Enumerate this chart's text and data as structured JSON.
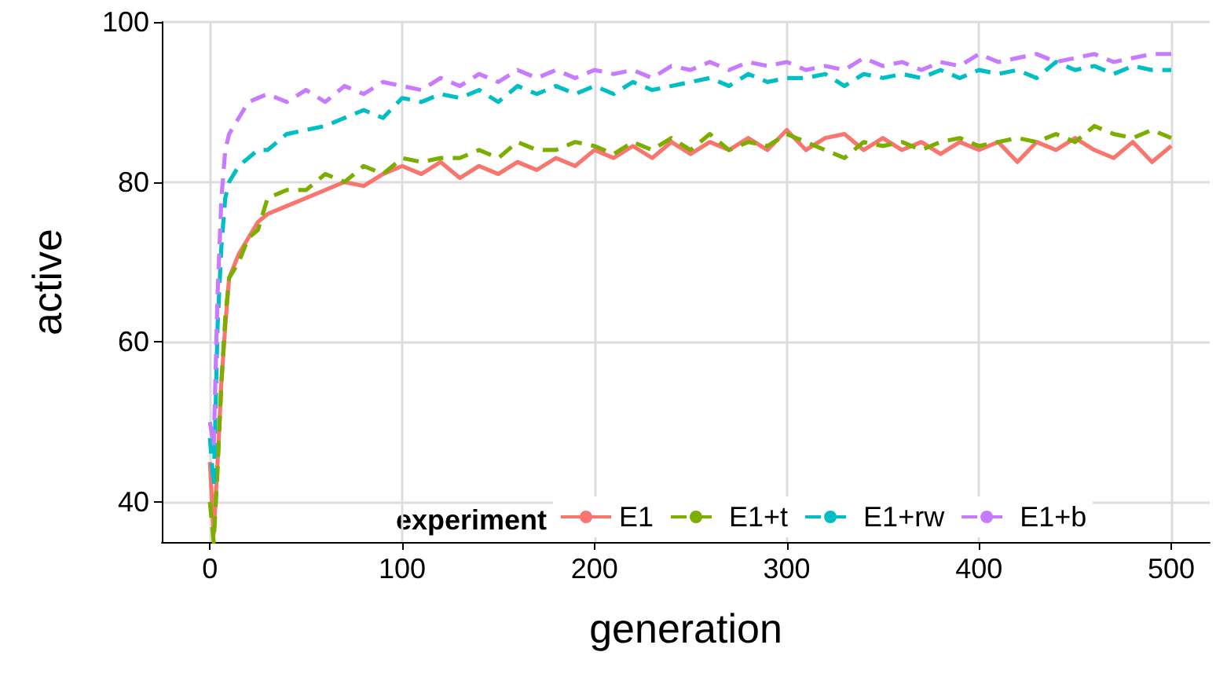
{
  "chart_data": {
    "type": "line",
    "xlabel": "generation",
    "ylabel": "active",
    "legend_title": "experiment",
    "x": [
      0,
      2,
      4,
      6,
      8,
      10,
      15,
      20,
      25,
      30,
      40,
      50,
      60,
      70,
      80,
      90,
      100,
      110,
      120,
      130,
      140,
      150,
      160,
      170,
      180,
      190,
      200,
      210,
      220,
      230,
      240,
      250,
      260,
      270,
      280,
      290,
      300,
      310,
      320,
      330,
      340,
      350,
      360,
      370,
      380,
      390,
      400,
      410,
      420,
      430,
      440,
      450,
      460,
      470,
      480,
      490,
      500
    ],
    "series": [
      {
        "name": "E1",
        "color": "#f8766d",
        "line_style": "solid",
        "values": [
          45,
          36,
          45,
          55,
          62,
          68,
          71,
          73,
          75,
          76,
          77,
          78,
          79,
          80,
          79.5,
          81,
          82,
          81,
          82.5,
          80.5,
          82,
          81,
          82.5,
          81.5,
          83,
          82,
          84,
          83,
          84.5,
          83,
          85,
          83.5,
          85,
          84,
          85.5,
          84,
          86.5,
          84,
          85.5,
          86,
          84,
          85.5,
          84,
          85,
          83.5,
          85,
          84,
          85,
          82.5,
          85,
          84,
          85.5,
          84,
          83,
          85,
          82.5,
          84.5
        ]
      },
      {
        "name": "E1+t",
        "color": "#7cae00",
        "line_style": "dashed",
        "values": [
          40,
          35,
          44,
          55,
          63,
          68,
          70,
          73,
          74,
          78,
          79,
          79,
          81,
          80,
          82,
          81,
          83,
          82.5,
          83,
          83,
          84,
          83,
          85,
          84,
          84,
          85,
          84.5,
          83.5,
          85,
          84,
          85.5,
          84,
          86,
          84,
          85,
          84.5,
          86,
          85,
          84,
          83,
          85,
          84.5,
          85,
          84,
          85,
          85.5,
          84.5,
          85,
          85.5,
          85,
          86,
          85,
          87,
          86,
          85.5,
          86.5,
          85.5
        ]
      },
      {
        "name": "E1+rw",
        "color": "#00bfc4",
        "line_style": "dashed",
        "values": [
          48,
          42,
          62,
          72,
          78,
          80,
          82,
          83,
          84,
          84,
          86,
          86.5,
          87,
          88,
          89,
          88,
          90.5,
          90,
          91,
          90.5,
          91.5,
          90,
          92,
          91,
          92,
          91,
          92,
          91,
          92.5,
          91.5,
          92,
          92.5,
          93,
          92,
          93.5,
          92.5,
          93,
          93,
          93.5,
          92,
          93.5,
          93,
          93.5,
          93,
          94,
          93,
          94,
          93.5,
          94,
          93,
          95,
          94,
          94.5,
          93.5,
          94.5,
          94,
          94
        ]
      },
      {
        "name": "E1+b",
        "color": "#c77cff",
        "line_style": "dashed",
        "values": [
          50,
          47,
          66,
          78,
          84,
          86,
          88,
          90,
          90.5,
          91,
          90,
          91.5,
          90,
          92,
          91,
          92.5,
          92,
          91.5,
          93,
          92,
          93.5,
          92.5,
          94,
          93,
          94,
          93,
          94,
          93.5,
          94,
          93,
          94.5,
          94,
          95,
          94,
          95,
          94.5,
          95,
          94,
          94.5,
          94,
          95.5,
          94.5,
          95,
          94,
          95,
          94.5,
          96,
          95,
          95.5,
          96,
          95,
          95.5,
          96,
          95,
          95.5,
          96,
          96
        ]
      }
    ],
    "xlim": [
      -25,
      520
    ],
    "xticks": [
      0,
      100,
      200,
      300,
      400,
      500
    ],
    "ylim": [
      35,
      100
    ],
    "yticks": [
      40,
      60,
      80,
      100
    ],
    "grid": true,
    "legend": "bottom right",
    "marker": "none"
  }
}
